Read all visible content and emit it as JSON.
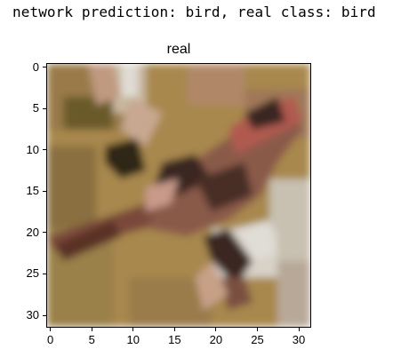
{
  "output": {
    "prediction_line": "network prediction: bird, real class: bird"
  },
  "figure": {
    "title": "real",
    "image_size": [
      32,
      32
    ],
    "x_ticks": [
      "0",
      "5",
      "10",
      "15",
      "20",
      "25",
      "30"
    ],
    "y_ticks": [
      "0",
      "5",
      "10",
      "15",
      "20",
      "25",
      "30"
    ],
    "y_axis_origin": "top-left"
  },
  "colors": {
    "background_tan": "#a8884e",
    "olive_dark": "#6b5a2a",
    "bird_body": "#8a5a4a",
    "bird_dark": "#3a2620",
    "bird_red": "#b05a50",
    "pale_highlight": "#d8d2c8",
    "pinkish": "#c89a8a"
  }
}
